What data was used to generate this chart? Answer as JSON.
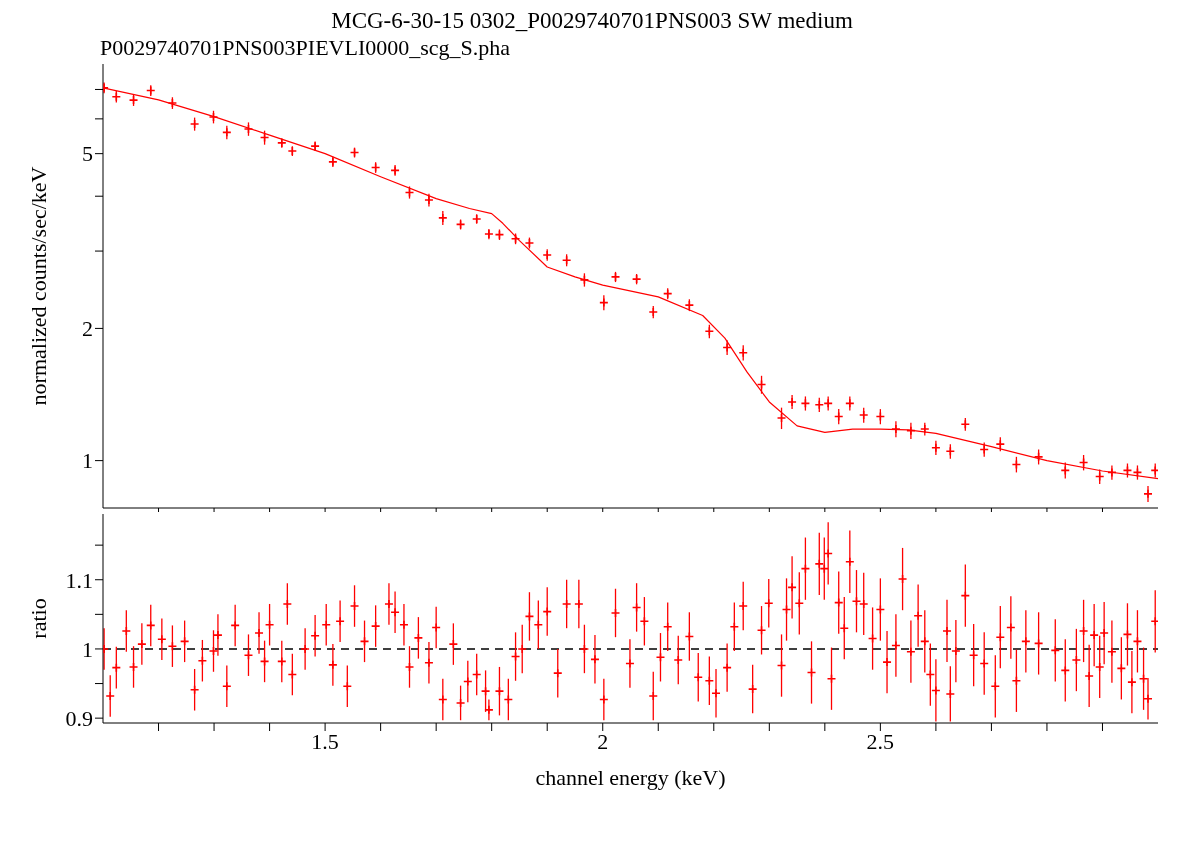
{
  "chart_data": [
    {
      "type": "scatter",
      "title": "MCG-6-30-15 0302_P0029740701PNS003 SW medium",
      "subtitle": "P0029740701PNS003PIEVLI0000_scg_S.pha",
      "ylabel": "normalized counts/sec/keV",
      "log": true,
      "marker": "cross",
      "tick_labels": "y",
      "xlim": [
        1.1,
        3.0
      ],
      "xticks": [
        {
          "value": 1.2,
          "label": null
        },
        {
          "value": 1.3,
          "label": null
        },
        {
          "value": 1.4,
          "label": null
        },
        1.5,
        {
          "value": 1.6,
          "label": null
        },
        {
          "value": 1.7,
          "label": null
        },
        {
          "value": 1.8,
          "label": null
        },
        {
          "value": 1.9,
          "label": null
        },
        2,
        {
          "value": 2.1,
          "label": null
        },
        {
          "value": 2.2,
          "label": null
        },
        {
          "value": 2.3,
          "label": null
        },
        {
          "value": 2.4,
          "label": null
        },
        2.5,
        {
          "value": 2.6,
          "label": null
        },
        {
          "value": 2.7,
          "label": null
        },
        {
          "value": 2.8,
          "label": null
        },
        {
          "value": 2.9,
          "label": null
        }
      ],
      "ylim": [
        0.78,
        8
      ],
      "yticks": [
        1,
        2,
        {
          "value": 3,
          "label": null
        },
        {
          "value": 4,
          "label": null
        },
        5,
        {
          "value": 6,
          "label": null
        },
        {
          "value": 7,
          "label": null
        }
      ],
      "series": [
        {
          "type": "scatter",
          "color": "#ff0000",
          "x": [
            1.102,
            1.124,
            1.155,
            1.186,
            1.225,
            1.265,
            1.299,
            1.323,
            1.362,
            1.391,
            1.422,
            1.441,
            1.482,
            1.514,
            1.553,
            1.591,
            1.626,
            1.652,
            1.687,
            1.712,
            1.744,
            1.773,
            1.795,
            1.814,
            1.843,
            1.868,
            1.9,
            1.935,
            1.967,
            2.002,
            2.023,
            2.061,
            2.091,
            2.117,
            2.156,
            2.192,
            2.224,
            2.253,
            2.286,
            2.322,
            2.341,
            2.365,
            2.39,
            2.406,
            2.425,
            2.445,
            2.47,
            2.5,
            2.528,
            2.555,
            2.58,
            2.6,
            2.626,
            2.653,
            2.687,
            2.716,
            2.745,
            2.785,
            2.833,
            2.866,
            2.895,
            2.917,
            2.945,
            2.963,
            2.982,
            2.995
          ],
          "values": [
            7.06,
            6.74,
            6.62,
            6.96,
            6.52,
            5.84,
            6.06,
            5.59,
            5.69,
            5.44,
            5.29,
            5.07,
            5.2,
            4.79,
            5.03,
            4.65,
            4.58,
            4.08,
            3.92,
            3.57,
            3.45,
            3.55,
            3.28,
            3.27,
            3.2,
            3.13,
            2.94,
            2.86,
            2.58,
            2.29,
            2.62,
            2.59,
            2.18,
            2.4,
            2.26,
            1.97,
            1.81,
            1.76,
            1.49,
            1.25,
            1.36,
            1.35,
            1.34,
            1.35,
            1.26,
            1.35,
            1.27,
            1.26,
            1.18,
            1.17,
            1.18,
            1.07,
            1.05,
            1.21,
            1.06,
            1.09,
            0.98,
            1.02,
            0.95,
            0.99,
            0.92,
            0.94,
            0.95,
            0.94,
            0.84,
            0.95
          ],
          "errors": [
            0.2,
            0.2,
            0.2,
            0.2,
            0.2,
            0.2,
            0.2,
            0.2,
            0.2,
            0.2,
            0.13,
            0.13,
            0.13,
            0.13,
            0.13,
            0.13,
            0.13,
            0.13,
            0.13,
            0.13,
            0.09,
            0.09,
            0.09,
            0.09,
            0.09,
            0.09,
            0.09,
            0.09,
            0.09,
            0.09,
            0.07,
            0.07,
            0.07,
            0.07,
            0.07,
            0.07,
            0.07,
            0.07,
            0.07,
            0.07,
            0.05,
            0.05,
            0.05,
            0.05,
            0.05,
            0.05,
            0.05,
            0.05,
            0.05,
            0.05,
            0.04,
            0.04,
            0.04,
            0.04,
            0.04,
            0.04,
            0.04,
            0.04,
            0.04,
            0.04,
            0.035,
            0.035,
            0.035,
            0.035,
            0.035,
            0.035
          ]
        },
        {
          "type": "line",
          "color": "#ff0000",
          "marker": "none",
          "x": [
            1.1,
            1.2,
            1.3,
            1.4,
            1.5,
            1.6,
            1.7,
            1.76,
            1.8,
            1.82,
            1.85,
            1.9,
            1.95,
            2.0,
            2.1,
            2.18,
            2.22,
            2.26,
            2.3,
            2.35,
            2.4,
            2.45,
            2.5,
            2.55,
            2.6,
            2.7,
            2.8,
            2.9,
            3.0
          ],
          "values": [
            7.06,
            6.63,
            6.07,
            5.51,
            5.0,
            4.43,
            3.95,
            3.75,
            3.65,
            3.47,
            3.17,
            2.76,
            2.62,
            2.51,
            2.36,
            2.14,
            1.9,
            1.59,
            1.36,
            1.2,
            1.16,
            1.18,
            1.18,
            1.175,
            1.154,
            1.076,
            1.0,
            0.947,
            0.91
          ]
        }
      ]
    },
    {
      "type": "scatter",
      "xlabel": "channel energy (keV)",
      "ylabel": "ratio",
      "marker": "cross",
      "xlim": [
        1.1,
        3.0
      ],
      "xticks": [
        {
          "value": 1.2,
          "label": null
        },
        {
          "value": 1.3,
          "label": null
        },
        {
          "value": 1.4,
          "label": null
        },
        1.5,
        {
          "value": 1.6,
          "label": null
        },
        {
          "value": 1.7,
          "label": null
        },
        {
          "value": 1.8,
          "label": null
        },
        {
          "value": 1.9,
          "label": null
        },
        2,
        {
          "value": 2.1,
          "label": null
        },
        {
          "value": 2.2,
          "label": null
        },
        {
          "value": 2.3,
          "label": null
        },
        {
          "value": 2.4,
          "label": null
        },
        2.5,
        {
          "value": 2.6,
          "label": null
        },
        {
          "value": 2.7,
          "label": null
        },
        {
          "value": 2.8,
          "label": null
        },
        {
          "value": 2.9,
          "label": null
        }
      ],
      "ylim": [
        0.893,
        1.195
      ],
      "yticks": [
        0.9,
        {
          "value": 0.95,
          "label": null
        },
        1,
        {
          "value": 1.05,
          "label": null
        },
        1.1,
        {
          "value": 1.15,
          "label": null
        }
      ],
      "ref_lines": [
        {
          "axis": "y",
          "value": 1,
          "color": "#000000",
          "line_style": "dashed"
        }
      ],
      "series": [
        {
          "type": "scatter",
          "color": "#ff0000",
          "x": [
            1.102,
            1.113,
            1.124,
            1.142,
            1.155,
            1.17,
            1.186,
            1.206,
            1.225,
            1.247,
            1.265,
            1.279,
            1.299,
            1.307,
            1.323,
            1.338,
            1.362,
            1.381,
            1.391,
            1.4,
            1.422,
            1.432,
            1.441,
            1.464,
            1.482,
            1.502,
            1.514,
            1.527,
            1.54,
            1.553,
            1.571,
            1.591,
            1.615,
            1.626,
            1.642,
            1.652,
            1.668,
            1.687,
            1.7,
            1.712,
            1.731,
            1.744,
            1.757,
            1.773,
            1.789,
            1.795,
            1.814,
            1.83,
            1.843,
            1.855,
            1.868,
            1.884,
            1.9,
            1.919,
            1.935,
            1.957,
            1.967,
            1.986,
            2.002,
            2.023,
            2.049,
            2.061,
            2.075,
            2.091,
            2.104,
            2.117,
            2.136,
            2.156,
            2.172,
            2.192,
            2.204,
            2.224,
            2.237,
            2.253,
            2.27,
            2.286,
            2.299,
            2.322,
            2.331,
            2.341,
            2.354,
            2.365,
            2.376,
            2.39,
            2.399,
            2.406,
            2.412,
            2.425,
            2.435,
            2.445,
            2.457,
            2.47,
            2.486,
            2.5,
            2.512,
            2.528,
            2.54,
            2.555,
            2.568,
            2.58,
            2.59,
            2.6,
            2.62,
            2.626,
            2.636,
            2.653,
            2.668,
            2.687,
            2.707,
            2.716,
            2.735,
            2.745,
            2.762,
            2.785,
            2.815,
            2.833,
            2.853,
            2.866,
            2.876,
            2.885,
            2.895,
            2.903,
            2.917,
            2.934,
            2.945,
            2.953,
            2.963,
            2.974,
            2.982,
            2.995
          ],
          "values": [
            1.0,
            0.932,
            0.973,
            1.026,
            0.974,
            1.007,
            1.034,
            1.014,
            1.004,
            1.011,
            0.941,
            0.983,
            0.997,
            1.02,
            0.946,
            1.034,
            0.991,
            1.023,
            0.982,
            1.035,
            0.982,
            1.065,
            0.963,
            1.0,
            1.019,
            1.035,
            0.977,
            1.04,
            0.946,
            1.062,
            1.011,
            1.033,
            1.065,
            1.053,
            1.035,
            0.974,
            1.016,
            0.98,
            1.031,
            0.927,
            1.007,
            0.922,
            0.953,
            0.963,
            0.939,
            0.912,
            0.939,
            0.927,
            0.989,
            1.0,
            1.047,
            1.035,
            1.054,
            0.965,
            1.065,
            1.065,
            1.0,
            0.985,
            0.927,
            1.052,
            0.979,
            1.06,
            1.04,
            0.932,
            0.988,
            1.032,
            0.984,
            1.018,
            0.959,
            0.954,
            0.936,
            0.973,
            1.032,
            1.062,
            0.942,
            1.027,
            1.066,
            0.976,
            1.057,
            1.089,
            1.066,
            1.116,
            0.966,
            1.123,
            1.116,
            1.138,
            0.957,
            1.067,
            1.03,
            1.126,
            1.069,
            1.065,
            1.015,
            1.057,
            0.981,
            1.005,
            1.101,
            0.996,
            1.048,
            1.011,
            0.963,
            0.94,
            1.026,
            0.935,
            0.997,
            1.077,
            0.991,
            0.979,
            0.946,
            1.017,
            1.031,
            0.954,
            1.011,
            1.008,
            0.998,
            0.969,
            0.984,
            1.026,
            0.961,
            1.02,
            0.974,
            1.023,
            0.996,
            0.972,
            1.021,
            0.952,
            1.011,
            0.957,
            0.928,
            1.04
          ],
          "errors": [
            0.03,
            0.03,
            0.03,
            0.03,
            0.03,
            0.03,
            0.03,
            0.03,
            0.03,
            0.03,
            0.03,
            0.03,
            0.03,
            0.03,
            0.03,
            0.03,
            0.03,
            0.03,
            0.03,
            0.03,
            0.03,
            0.03,
            0.03,
            0.03,
            0.03,
            0.03,
            0.03,
            0.03,
            0.03,
            0.03,
            0.03,
            0.03,
            0.03,
            0.03,
            0.03,
            0.03,
            0.03,
            0.03,
            0.03,
            0.03,
            0.03,
            0.025,
            0.03,
            0.03,
            0.03,
            0.015,
            0.035,
            0.03,
            0.035,
            0.035,
            0.035,
            0.035,
            0.035,
            0.035,
            0.035,
            0.035,
            0.035,
            0.035,
            0.03,
            0.035,
            0.035,
            0.035,
            0.035,
            0.035,
            0.035,
            0.035,
            0.035,
            0.035,
            0.035,
            0.035,
            0.035,
            0.035,
            0.035,
            0.035,
            0.035,
            0.035,
            0.035,
            0.045,
            0.045,
            0.045,
            0.045,
            0.045,
            0.045,
            0.045,
            0.045,
            0.045,
            0.045,
            0.045,
            0.045,
            0.045,
            0.045,
            0.045,
            0.045,
            0.045,
            0.045,
            0.045,
            0.045,
            0.045,
            0.045,
            0.045,
            0.045,
            0.045,
            0.045,
            0.04,
            0.045,
            0.045,
            0.045,
            0.045,
            0.045,
            0.045,
            0.045,
            0.045,
            0.045,
            0.045,
            0.045,
            0.045,
            0.045,
            0.045,
            0.045,
            0.045,
            0.045,
            0.045,
            0.045,
            0.045,
            0.045,
            0.045,
            0.045,
            0.045,
            0.03,
            0.045
          ]
        }
      ]
    }
  ]
}
